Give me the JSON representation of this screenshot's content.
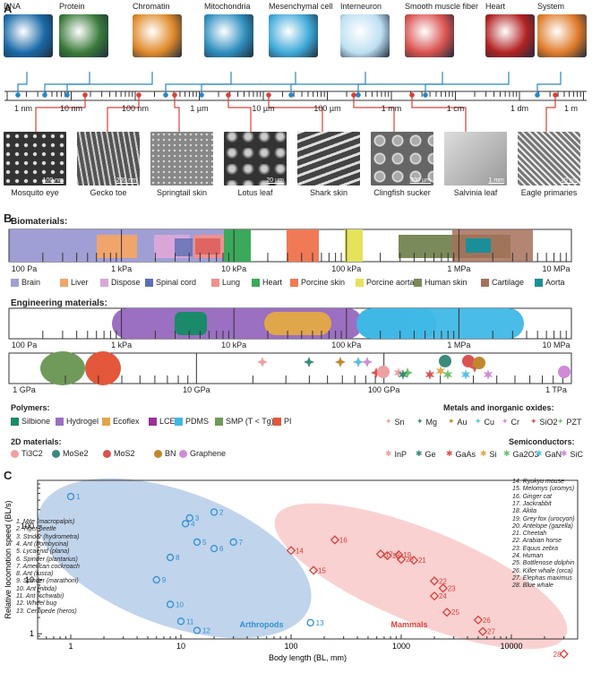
{
  "panels": {
    "a": "A",
    "b": "B",
    "c": "C"
  },
  "top_items": [
    {
      "label": "DNA",
      "color": "#1a6aa8"
    },
    {
      "label": "Protein",
      "color": "#3a7a3a"
    },
    {
      "label": "Chromatin",
      "color": "#e08a2a"
    },
    {
      "label": "Mitochondria",
      "color": "#2f8fbf"
    },
    {
      "label": "Mesenchymal cell",
      "color": "#3fa9d9"
    },
    {
      "label": "Interneuron",
      "color": "#bde0f2"
    },
    {
      "label": "Smooth muscle fiber",
      "color": "#d9534f"
    },
    {
      "label": "Heart",
      "color": "#b22222"
    },
    {
      "label": "System",
      "color": "#e07b2a"
    }
  ],
  "scale_ticks": [
    "1 nm",
    "10 nm",
    "100 nm",
    "1 µm",
    "10 µm",
    "100 µm",
    "1 mm",
    "1 cm",
    "1 dm",
    "1 m"
  ],
  "bottom_items": [
    {
      "label": "Mosquito eye",
      "bar": "100 nm"
    },
    {
      "label": "Gecko toe",
      "bar": "200 nm"
    },
    {
      "label": "Springtail skin",
      "bar": ""
    },
    {
      "label": "Lotus leaf",
      "bar": "20 µm"
    },
    {
      "label": "Shark skin",
      "bar": ""
    },
    {
      "label": "Clingfish sucker",
      "bar": "300 µm"
    },
    {
      "label": "Salvinia leaf",
      "bar": "1 mm"
    },
    {
      "label": "Eagle primaries",
      "bar": "10 cm"
    }
  ],
  "bio": {
    "title": "Biomaterials:",
    "ticks": [
      "100 Pa",
      "1 kPa",
      "10 kPa",
      "100 kPa",
      "1 MPa",
      "10 MPa"
    ],
    "legend": [
      {
        "label": "Brain",
        "color": "#9f9fd6"
      },
      {
        "label": "Liver",
        "color": "#f0a56b"
      },
      {
        "label": "Dispose",
        "color": "#d8a7d8"
      },
      {
        "label": "Spinal cord",
        "color": "#5b6fb5"
      },
      {
        "label": "Lung",
        "color": "#ef8f8f"
      },
      {
        "label": "Heart",
        "color": "#3aa95a"
      },
      {
        "label": "Porcine skin",
        "color": "#f07a55"
      },
      {
        "label": "Porcine aorta",
        "color": "#e6e25a"
      },
      {
        "label": "Human skin",
        "color": "#7b8a5a"
      },
      {
        "label": "Cartilage",
        "color": "#a6705a"
      },
      {
        "label": "Aorta",
        "color": "#1a8f9a"
      }
    ]
  },
  "eng": {
    "title": "Engineering materials:",
    "ticks1": [
      "100 Pa",
      "1 kPa",
      "10 kPa",
      "100 kPa",
      "1 MPa",
      "10 MPa"
    ],
    "ticks2": [
      "1 GPa",
      "10 GPa",
      "100 GPa",
      "1 TPa"
    ],
    "polymers_title": "Polymers:",
    "polymers": [
      {
        "label": "Silbione",
        "color": "#1a8a6a"
      },
      {
        "label": "Hydrogel",
        "color": "#9b6fc1"
      },
      {
        "label": "Ecoflex",
        "color": "#e0a64a"
      },
      {
        "label": "LCE",
        "color": "#9a2f9a"
      },
      {
        "label": "PDMS",
        "color": "#3fb8e6"
      },
      {
        "label": "SMP (T < Tg)",
        "color": "#6f9a5a"
      },
      {
        "label": "PI",
        "color": "#e3573a"
      }
    ],
    "metals_title": "Metals and inorganic oxides:",
    "metals": [
      {
        "label": "Sn",
        "color": "#f0a0a0"
      },
      {
        "label": "Mg",
        "color": "#3a8a7a"
      },
      {
        "label": "Au",
        "color": "#c0882a"
      },
      {
        "label": "Cu",
        "color": "#5bc0de"
      },
      {
        "label": "Cr",
        "color": "#d08ad8"
      },
      {
        "label": "SiO2",
        "color": "#d9534f"
      },
      {
        "label": "PZT",
        "color": "#6fc06f"
      }
    ],
    "twod_title": "2D materials:",
    "twod": [
      {
        "label": "Ti3C2",
        "color": "#f0a0a0"
      },
      {
        "label": "MoSe2",
        "color": "#3a8a7a"
      },
      {
        "label": "MoS2",
        "color": "#d9534f"
      },
      {
        "label": "BN",
        "color": "#c0882a"
      },
      {
        "label": "Graphene",
        "color": "#d08ad8"
      }
    ],
    "semi_title": "Semiconductors:",
    "semi": [
      {
        "label": "InP",
        "color": "#f0a0a0"
      },
      {
        "label": "Ge",
        "color": "#3a8a7a"
      },
      {
        "label": "GaAs",
        "color": "#d9534f"
      },
      {
        "label": "Si",
        "color": "#e0a64a"
      },
      {
        "label": "Ga2O3",
        "color": "#6fc06f"
      },
      {
        "label": "GaN",
        "color": "#5bc0de"
      },
      {
        "label": "SiC",
        "color": "#d08ad8"
      }
    ]
  },
  "chart_data": {
    "type": "scatter",
    "xlabel": "Body length (BL, mm)",
    "ylabel": "Relative locomotion speed (BL/s)",
    "x_scale": "log",
    "y_scale": "log",
    "xlim": [
      0.5,
      40000
    ],
    "ylim": [
      0.8,
      700
    ],
    "x_ticks": [
      "1",
      "10",
      "100",
      "1000",
      "10000"
    ],
    "y_ticks": [
      "1",
      "10",
      "100"
    ],
    "groups": [
      {
        "name": "Arthropods",
        "color": "#2f8fd0"
      },
      {
        "name": "Mammals",
        "color": "#d9403a"
      }
    ],
    "arthropods": [
      {
        "n": 1,
        "x": 1,
        "y": 350
      },
      {
        "n": 2,
        "x": 20,
        "y": 180
      },
      {
        "n": 3,
        "x": 12,
        "y": 140
      },
      {
        "n": 4,
        "x": 11,
        "y": 110
      },
      {
        "n": 5,
        "x": 14,
        "y": 50
      },
      {
        "n": 6,
        "x": 20,
        "y": 38
      },
      {
        "n": 7,
        "x": 30,
        "y": 50
      },
      {
        "n": 8,
        "x": 8,
        "y": 26
      },
      {
        "n": 9,
        "x": 6,
        "y": 10
      },
      {
        "n": 10,
        "x": 8,
        "y": 3.5
      },
      {
        "n": 11,
        "x": 10,
        "y": 1.7
      },
      {
        "n": 12,
        "x": 14,
        "y": 1.15
      },
      {
        "n": 13,
        "x": 150,
        "y": 1.6
      }
    ],
    "mammals": [
      {
        "n": 14,
        "x": 100,
        "y": 35
      },
      {
        "n": 15,
        "x": 160,
        "y": 15
      },
      {
        "n": 16,
        "x": 250,
        "y": 55
      },
      {
        "n": 17,
        "x": 650,
        "y": 30
      },
      {
        "n": 18,
        "x": 750,
        "y": 28
      },
      {
        "n": 19,
        "x": 950,
        "y": 29
      },
      {
        "n": 20,
        "x": 1000,
        "y": 24
      },
      {
        "n": 21,
        "x": 1300,
        "y": 23
      },
      {
        "n": 22,
        "x": 2000,
        "y": 9.5
      },
      {
        "n": 23,
        "x": 2400,
        "y": 7
      },
      {
        "n": 24,
        "x": 2000,
        "y": 5
      },
      {
        "n": 25,
        "x": 2600,
        "y": 2.5
      },
      {
        "n": 26,
        "x": 5000,
        "y": 1.8
      },
      {
        "n": 27,
        "x": 5500,
        "y": 1.1
      },
      {
        "n": 28,
        "x": 30000,
        "y": 0.42
      }
    ],
    "legend_left": [
      "1. Mite (macropalpis)",
      "2. Tiger beetle",
      "3. Strider (hydrometra)",
      "4. Ant (bombycina)",
      "5. Lycaenid (plana)",
      "6. Spinder (plantarius)",
      "7. American cockroach",
      "8. Ant (fusca)",
      "9. Spinder (marathoni)",
      "10. Ant (nitida)",
      "11. Ant (schwabi)",
      "12. Wheel bug",
      "13. Centipede (heros)"
    ],
    "legend_right": [
      "14. Ryukyu mouse",
      "15. Melomys (uromys)",
      "16. Ginger cat",
      "17. Jackrabbit",
      "18. Akita",
      "19. Grey fox (urocyon)",
      "20. Antelope (gazella)",
      "21. Cheetah",
      "22. Arabian horse",
      "23. Equus zebra",
      "24. Human",
      "25. Bottlenose dolphin",
      "26. Killer whale (orca)",
      "27. Elephas maximus",
      "28. Blue whale"
    ]
  }
}
